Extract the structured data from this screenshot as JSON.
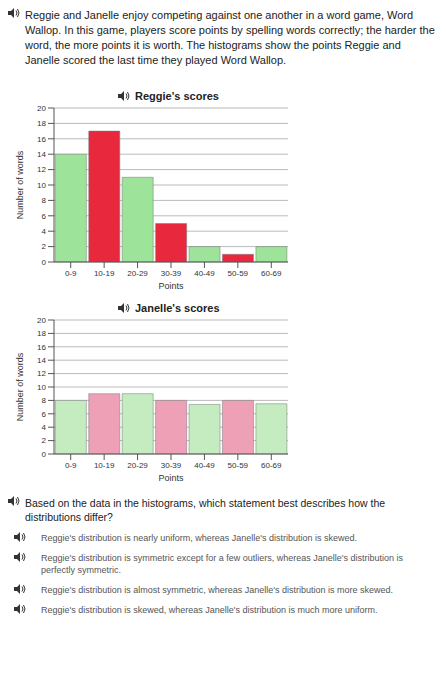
{
  "document": {
    "intro": "Reggie and Janelle enjoy competing against one another in a word game, Word Wallop. In this game, players score points by spelling words correctly; the harder the word, the more points it is worth. The histograms show the points Reggie and Janelle scored the last time they played Word Wallop.",
    "question": "Based on the data in the histograms, which statement best describes how the distributions differ?",
    "options": [
      "Reggie's distribution is nearly uniform, whereas Janelle's distribution is skewed.",
      "Reggie's distribution is symmetric except for a few outliers, whereas Janelle's distribution is perfectly symmetric.",
      "Reggie's distribution is almost symmetric, whereas Janelle's distribution is more skewed.",
      "Reggie's distribution is skewed, whereas Janelle's distribution is much more uniform."
    ]
  },
  "chart_data": [
    {
      "type": "bar",
      "title": "Reggie's scores",
      "x_label": "Points",
      "y_label": "Number of words",
      "categories": [
        "0-9",
        "10-19",
        "20-29",
        "30-39",
        "40-49",
        "50-59",
        "60-69"
      ],
      "values": [
        14,
        17,
        11,
        5,
        2,
        1,
        2
      ],
      "colors": [
        "#9de39a",
        "#e8283c",
        "#9de39a",
        "#e8283c",
        "#9de39a",
        "#e8283c",
        "#9de39a"
      ],
      "ylim": [
        0,
        20
      ],
      "yticks": [
        0,
        2,
        4,
        6,
        8,
        10,
        12,
        14,
        16,
        18,
        20
      ],
      "grid": true
    },
    {
      "type": "bar",
      "title": "Janelle's scores",
      "x_label": "Points",
      "y_label": "Number of words",
      "categories": [
        "0-9",
        "10-19",
        "20-29",
        "30-39",
        "40-49",
        "50-59",
        "60-69"
      ],
      "values": [
        8,
        9,
        9,
        8,
        7.4,
        8,
        7.5
      ],
      "colors": [
        "#c4ecc0",
        "#eea0b6",
        "#c4ecc0",
        "#eea0b6",
        "#c4ecc0",
        "#eea0b6",
        "#c4ecc0"
      ],
      "ylim": [
        0,
        20
      ],
      "yticks": [
        0,
        2,
        4,
        6,
        8,
        10,
        12,
        14,
        16,
        18,
        20
      ],
      "grid": true
    }
  ]
}
